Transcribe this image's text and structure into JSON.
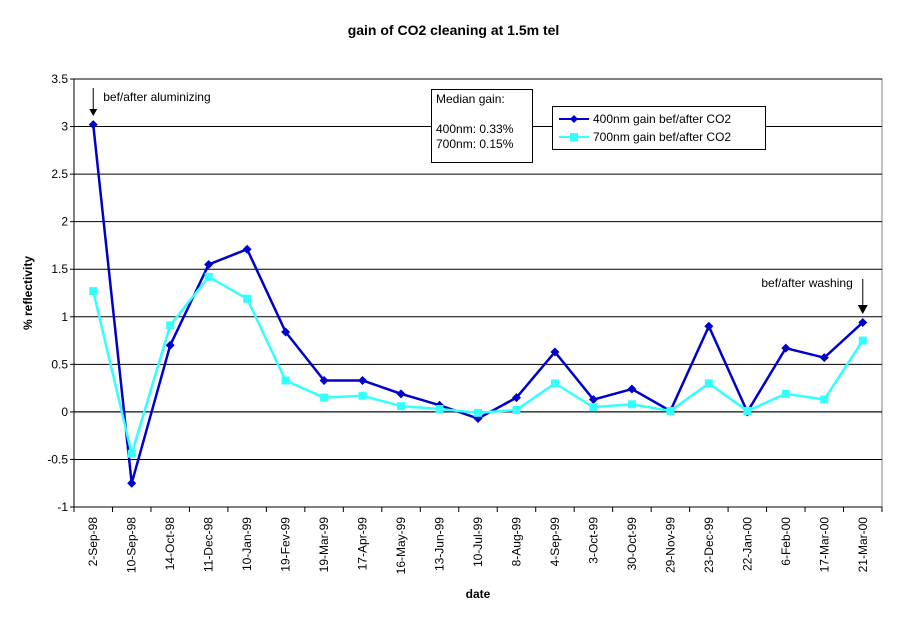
{
  "chart_data": {
    "type": "line",
    "title": "gain of CO2 cleaning at 1.5m tel",
    "xlabel": "date",
    "ylabel": "% reflectivity",
    "ylim": [
      -1,
      3.5
    ],
    "ytick_step": 0.5,
    "yticks": [
      "-1",
      "-0.5",
      "0",
      "0.5",
      "1",
      "1.5",
      "2",
      "2.5",
      "3",
      "3.5"
    ],
    "grid": true,
    "legend_position": "top-right",
    "categories": [
      "2-Sep-98",
      "10-Sep-98",
      "14-Oct-98",
      "11-Dec-98",
      "10-Jan-99",
      "19-Fev-99",
      "19-Mar-99",
      "17-Apr-99",
      "16-May-99",
      "13-Jun-99",
      "10-Jul-99",
      "8-Aug-99",
      "4-Sep-99",
      "3-Oct-99",
      "30-Oct-99",
      "29-Nov-99",
      "23-Dec-99",
      "22-Jan-00",
      "6-Feb-00",
      "17-Mar-00",
      "21-Mar-00"
    ],
    "series": [
      {
        "name": "400nm gain bef/after CO2",
        "color": "#0000CC",
        "marker": "diamond",
        "values": [
          3.02,
          -0.75,
          0.7,
          1.55,
          1.71,
          0.84,
          0.33,
          0.33,
          0.19,
          0.07,
          -0.07,
          0.15,
          0.63,
          0.13,
          0.24,
          0.01,
          0.9,
          0.0,
          0.67,
          0.57,
          0.94
        ]
      },
      {
        "name": "700nm gain bef/after CO2",
        "color": "#33FFFF",
        "marker": "square",
        "values": [
          1.27,
          -0.44,
          0.91,
          1.42,
          1.19,
          0.33,
          0.15,
          0.17,
          0.06,
          0.03,
          -0.01,
          0.02,
          0.3,
          0.05,
          0.08,
          0.01,
          0.3,
          0.01,
          0.19,
          0.13,
          0.75
        ]
      }
    ],
    "annotations": [
      {
        "text": "bef/after aluminizing",
        "category_index": 0
      },
      {
        "text": "bef/after washing",
        "category_index": 20
      }
    ],
    "median_box": {
      "title": "Median gain:",
      "line1": "400nm: 0.33%",
      "line2": "700nm: 0.15%"
    }
  }
}
